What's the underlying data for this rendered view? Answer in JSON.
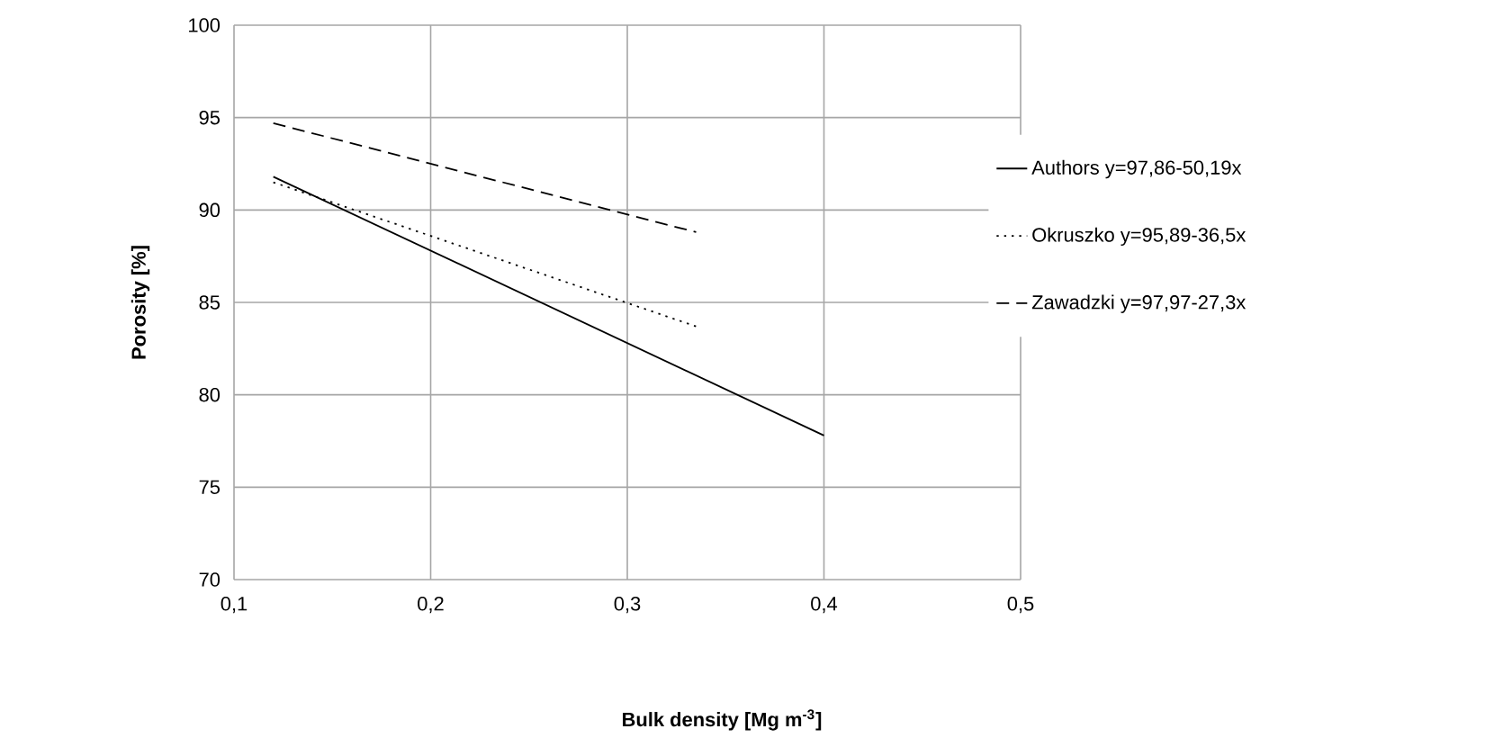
{
  "chart_data": {
    "type": "line",
    "xlabel": "Bulk density [Mg m$^{-3}$]",
    "ylabel": "Porosity [%]",
    "xlim": [
      0.1,
      0.5
    ],
    "ylim": [
      70,
      100
    ],
    "xticks": [
      {
        "value": 0.1,
        "label": "0,1"
      },
      {
        "value": 0.2,
        "label": "0,2"
      },
      {
        "value": 0.3,
        "label": "0,3"
      },
      {
        "value": 0.4,
        "label": "0,4"
      },
      {
        "value": 0.5,
        "label": "0,5"
      }
    ],
    "yticks": [
      70,
      75,
      80,
      85,
      90,
      95,
      100
    ],
    "grid": true,
    "legend": "right",
    "marker": "none",
    "series": [
      {
        "name": "Authors y=97,86-50,19x",
        "color": "#000000",
        "line_style": "solid",
        "x": [
          0.12,
          0.4
        ],
        "values": [
          91.8,
          77.8
        ]
      },
      {
        "name": "Okruszko y=95,89-36,5x",
        "color": "#000000",
        "line_style": "dotted",
        "x": [
          0.12,
          0.335
        ],
        "values": [
          91.5,
          83.7
        ]
      },
      {
        "name": "Zawadzki y=97,97-27,3x",
        "color": "#000000",
        "line_style": "dashed",
        "x": [
          0.12,
          0.335
        ],
        "values": [
          94.7,
          88.8
        ]
      }
    ]
  }
}
